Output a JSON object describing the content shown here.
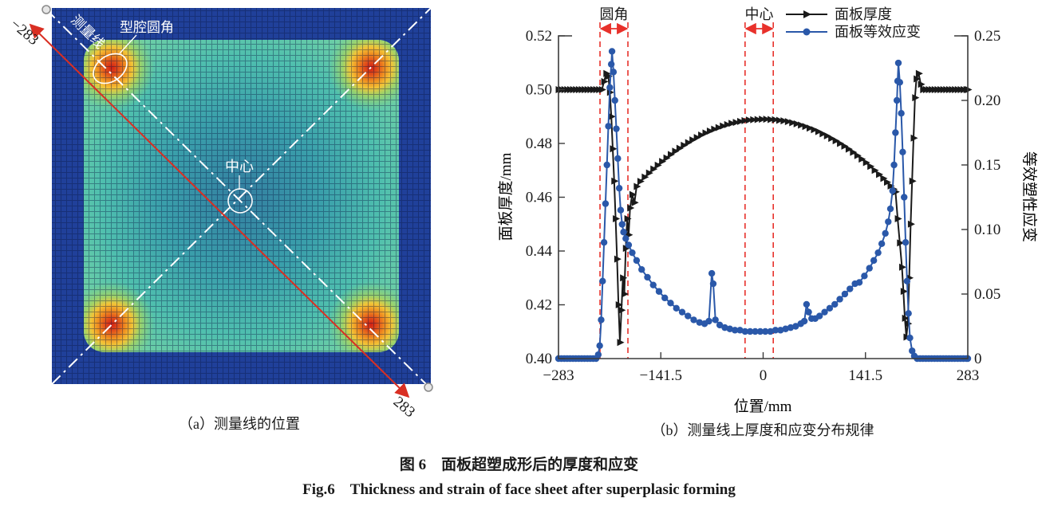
{
  "figure": {
    "panel_a": {
      "label": "（a）测量线的位置",
      "annotations": {
        "measure_line": "测量线",
        "cavity_fillet": "型腔圆角",
        "center": "中心",
        "start_coord": "−283",
        "end_coord": "283"
      }
    },
    "panel_b": {
      "label": "（b）测量线上厚度和应变分布规律"
    },
    "caption_zh": "图 6　面板超塑成形后的厚度和应变",
    "caption_en": "Fig.6　Thickness and strain of face sheet after superplasic forming"
  },
  "colors": {
    "thickness": "#1a1a1a",
    "strain": "#2a58a9",
    "annotation_red": "#e8312b",
    "measure_line_red": "#d92f23",
    "axis": "#3a3a3a",
    "contour_field_blue": "#20409a",
    "contour_hot_red": "#d21f14"
  },
  "chart_data": {
    "type": "line",
    "title": "",
    "xlabel": "位置/mm",
    "ylabel_left": "面板厚度/mm",
    "ylabel_right": "等效塑性应变",
    "xlim": [
      -283,
      283
    ],
    "ylim_left": [
      0.4,
      0.52
    ],
    "ylim_right": [
      0,
      0.25
    ],
    "xticks": {
      "values": [
        -283,
        -141.5,
        0,
        141.5,
        283
      ],
      "labels": [
        "−283",
        "−141.5",
        "0",
        "141.5",
        "283"
      ]
    },
    "yticks_left": {
      "values": [
        0.4,
        0.42,
        0.44,
        0.46,
        0.48,
        0.5,
        0.52
      ],
      "labels": [
        "0.40",
        "0.42",
        "0.44",
        "0.46",
        "0.48",
        "0.50",
        "0.52"
      ]
    },
    "yticks_right": {
      "values": [
        0,
        0.05,
        0.1,
        0.15,
        0.2,
        0.25
      ],
      "labels": [
        "0",
        "0.05",
        "0.10",
        "0.15",
        "0.20",
        "0.25"
      ]
    },
    "grid": false,
    "legend_position": "top",
    "annotations": [
      {
        "label": "圆角",
        "band_mm": [
          -225.6,
          -187
        ]
      },
      {
        "label": "中心",
        "band_mm": [
          -25,
          14
        ]
      }
    ],
    "series": [
      {
        "name": "面板厚度",
        "axis": "left",
        "color": "#1a1a1a",
        "marker": "triangle-right",
        "points": [
          [
            -283,
            0.5
          ],
          [
            -279,
            0.5
          ],
          [
            -275,
            0.5
          ],
          [
            -271,
            0.5
          ],
          [
            -267,
            0.5
          ],
          [
            -263,
            0.5
          ],
          [
            -259,
            0.5
          ],
          [
            -255,
            0.5
          ],
          [
            -251,
            0.5
          ],
          [
            -247,
            0.5
          ],
          [
            -243,
            0.5
          ],
          [
            -239,
            0.5
          ],
          [
            -235,
            0.5
          ],
          [
            -231,
            0.5
          ],
          [
            -227,
            0.5
          ],
          [
            -223,
            0.5
          ],
          [
            -220,
            0.503
          ],
          [
            -217,
            0.506
          ],
          [
            -214,
            0.505
          ],
          [
            -212,
            0.499
          ],
          [
            -210,
            0.49
          ],
          [
            -208,
            0.478
          ],
          [
            -206,
            0.466
          ],
          [
            -204,
            0.452
          ],
          [
            -202,
            0.437
          ],
          [
            -200,
            0.42
          ],
          [
            -198,
            0.406
          ],
          [
            -196,
            0.418
          ],
          [
            -194,
            0.43
          ],
          [
            -192,
            0.424
          ],
          [
            -190,
            0.441
          ],
          [
            -188,
            0.452
          ],
          [
            -186,
            0.446
          ],
          [
            -184,
            0.456
          ],
          [
            -181,
            0.461
          ],
          [
            -178,
            0.458
          ],
          [
            -175,
            0.464
          ],
          [
            -170,
            0.4659
          ],
          [
            -164,
            0.4675
          ],
          [
            -158,
            0.469
          ],
          [
            -152,
            0.4705
          ],
          [
            -146,
            0.4719
          ],
          [
            -140,
            0.4733
          ],
          [
            -134,
            0.4746
          ],
          [
            -128,
            0.4759
          ],
          [
            -122,
            0.4771
          ],
          [
            -116,
            0.4782
          ],
          [
            -110,
            0.4793
          ],
          [
            -104,
            0.4803
          ],
          [
            -98,
            0.4813
          ],
          [
            -92,
            0.4822
          ],
          [
            -86,
            0.4831
          ],
          [
            -80,
            0.4839
          ],
          [
            -74,
            0.4846
          ],
          [
            -68,
            0.4853
          ],
          [
            -62,
            0.4859
          ],
          [
            -56,
            0.4865
          ],
          [
            -50,
            0.487
          ],
          [
            -44,
            0.4875
          ],
          [
            -38,
            0.4878
          ],
          [
            -32,
            0.4882
          ],
          [
            -26,
            0.4885
          ],
          [
            -20,
            0.4887
          ],
          [
            -14,
            0.4888
          ],
          [
            -8,
            0.4889
          ],
          [
            -2,
            0.489
          ],
          [
            4,
            0.489
          ],
          [
            10,
            0.4889
          ],
          [
            16,
            0.4888
          ],
          [
            22,
            0.4886
          ],
          [
            28,
            0.4884
          ],
          [
            34,
            0.4881
          ],
          [
            40,
            0.4877
          ],
          [
            46,
            0.4873
          ],
          [
            52,
            0.4868
          ],
          [
            58,
            0.4863
          ],
          [
            64,
            0.4857
          ],
          [
            70,
            0.4851
          ],
          [
            76,
            0.4844
          ],
          [
            82,
            0.4836
          ],
          [
            88,
            0.4828
          ],
          [
            94,
            0.4819
          ],
          [
            100,
            0.481
          ],
          [
            106,
            0.48
          ],
          [
            112,
            0.479
          ],
          [
            118,
            0.4779
          ],
          [
            124,
            0.4767
          ],
          [
            130,
            0.4755
          ],
          [
            136,
            0.4742
          ],
          [
            142,
            0.4729
          ],
          [
            148,
            0.4715
          ],
          [
            154,
            0.47
          ],
          [
            160,
            0.4685
          ],
          [
            166,
            0.467
          ],
          [
            171,
            0.4656
          ],
          [
            176,
            0.4642
          ],
          [
            180,
            0.463
          ],
          [
            183,
            0.462
          ],
          [
            186,
            0.452
          ],
          [
            189,
            0.443
          ],
          [
            192,
            0.434
          ],
          [
            194,
            0.425
          ],
          [
            196,
            0.415
          ],
          [
            198,
            0.408
          ],
          [
            200,
            0.413
          ],
          [
            202,
            0.43
          ],
          [
            204,
            0.45
          ],
          [
            206,
            0.466
          ],
          [
            208,
            0.482
          ],
          [
            210,
            0.497
          ],
          [
            212,
            0.504
          ],
          [
            215,
            0.506
          ],
          [
            218,
            0.502
          ],
          [
            221,
            0.5
          ],
          [
            225,
            0.5
          ],
          [
            229,
            0.5
          ],
          [
            233,
            0.5
          ],
          [
            237,
            0.5
          ],
          [
            241,
            0.5
          ],
          [
            245,
            0.5
          ],
          [
            249,
            0.5
          ],
          [
            253,
            0.5
          ],
          [
            257,
            0.5
          ],
          [
            261,
            0.5
          ],
          [
            265,
            0.5
          ],
          [
            269,
            0.5
          ],
          [
            273,
            0.5
          ],
          [
            277,
            0.5
          ],
          [
            281,
            0.5
          ],
          [
            283,
            0.5
          ]
        ]
      },
      {
        "name": "面板等效应变",
        "axis": "right",
        "color": "#2a58a9",
        "marker": "circle",
        "points": [
          [
            -283,
            0
          ],
          [
            -279,
            0
          ],
          [
            -275,
            0
          ],
          [
            -271,
            0
          ],
          [
            -267,
            0
          ],
          [
            -263,
            0
          ],
          [
            -259,
            0
          ],
          [
            -255,
            0
          ],
          [
            -251,
            0
          ],
          [
            -247,
            0
          ],
          [
            -243,
            0
          ],
          [
            -239,
            0
          ],
          [
            -235,
            0
          ],
          [
            -231,
            0
          ],
          [
            -228,
            0.003
          ],
          [
            -226,
            0.01
          ],
          [
            -224,
            0.03
          ],
          [
            -222,
            0.06
          ],
          [
            -220,
            0.09
          ],
          [
            -218,
            0.12
          ],
          [
            -216,
            0.15
          ],
          [
            -214,
            0.18
          ],
          [
            -212,
            0.21
          ],
          [
            -210,
            0.228
          ],
          [
            -209,
            0.238
          ],
          [
            -207,
            0.222
          ],
          [
            -205,
            0.2
          ],
          [
            -203,
            0.178
          ],
          [
            -201,
            0.155
          ],
          [
            -199,
            0.132
          ],
          [
            -197,
            0.115
          ],
          [
            -195,
            0.104
          ],
          [
            -193,
            0.098
          ],
          [
            -190,
            0.093
          ],
          [
            -186,
            0.088
          ],
          [
            -181,
            0.082
          ],
          [
            -175,
            0.076
          ],
          [
            -168,
            0.069
          ],
          [
            -160,
            0.063
          ],
          [
            -152,
            0.057
          ],
          [
            -144,
            0.052
          ],
          [
            -136,
            0.047
          ],
          [
            -128,
            0.043
          ],
          [
            -120,
            0.039
          ],
          [
            -112,
            0.036
          ],
          [
            -104,
            0.033
          ],
          [
            -96,
            0.03
          ],
          [
            -88,
            0.028
          ],
          [
            -81,
            0.027
          ],
          [
            -75,
            0.029
          ],
          [
            -71,
            0.066
          ],
          [
            -69,
            0.058
          ],
          [
            -66,
            0.03
          ],
          [
            -60,
            0.026
          ],
          [
            -53,
            0.024
          ],
          [
            -46,
            0.023
          ],
          [
            -39,
            0.022
          ],
          [
            -32,
            0.022
          ],
          [
            -25,
            0.021
          ],
          [
            -18,
            0.021
          ],
          [
            -11,
            0.021
          ],
          [
            -4,
            0.021
          ],
          [
            3,
            0.021
          ],
          [
            10,
            0.021
          ],
          [
            17,
            0.022
          ],
          [
            24,
            0.022
          ],
          [
            31,
            0.023
          ],
          [
            38,
            0.024
          ],
          [
            45,
            0.025
          ],
          [
            52,
            0.027
          ],
          [
            57,
            0.029
          ],
          [
            60,
            0.042
          ],
          [
            63,
            0.036
          ],
          [
            67,
            0.031
          ],
          [
            72,
            0.031
          ],
          [
            78,
            0.033
          ],
          [
            85,
            0.036
          ],
          [
            92,
            0.039
          ],
          [
            99,
            0.042
          ],
          [
            106,
            0.046
          ],
          [
            113,
            0.05
          ],
          [
            120,
            0.054
          ],
          [
            127,
            0.058
          ],
          [
            133,
            0.059
          ],
          [
            140,
            0.064
          ],
          [
            147,
            0.07
          ],
          [
            153,
            0.076
          ],
          [
            159,
            0.082
          ],
          [
            164,
            0.089
          ],
          [
            169,
            0.097
          ],
          [
            173,
            0.106
          ],
          [
            176,
            0.116
          ],
          [
            179,
            0.13
          ],
          [
            181,
            0.15
          ],
          [
            183,
            0.175
          ],
          [
            185,
            0.2
          ],
          [
            186,
            0.215
          ],
          [
            187,
            0.229
          ],
          [
            189,
            0.214
          ],
          [
            191,
            0.19
          ],
          [
            193,
            0.16
          ],
          [
            195,
            0.125
          ],
          [
            197,
            0.09
          ],
          [
            199,
            0.06
          ],
          [
            201,
            0.035
          ],
          [
            203,
            0.016
          ],
          [
            206,
            0.006
          ],
          [
            209,
            0.002
          ],
          [
            213,
            0
          ],
          [
            217,
            0
          ],
          [
            221,
            0
          ],
          [
            225,
            0
          ],
          [
            229,
            0
          ],
          [
            233,
            0
          ],
          [
            237,
            0
          ],
          [
            241,
            0
          ],
          [
            245,
            0
          ],
          [
            249,
            0
          ],
          [
            253,
            0
          ],
          [
            257,
            0
          ],
          [
            261,
            0
          ],
          [
            265,
            0
          ],
          [
            269,
            0
          ],
          [
            273,
            0
          ],
          [
            277,
            0
          ],
          [
            281,
            0
          ],
          [
            283,
            0
          ]
        ]
      }
    ]
  }
}
